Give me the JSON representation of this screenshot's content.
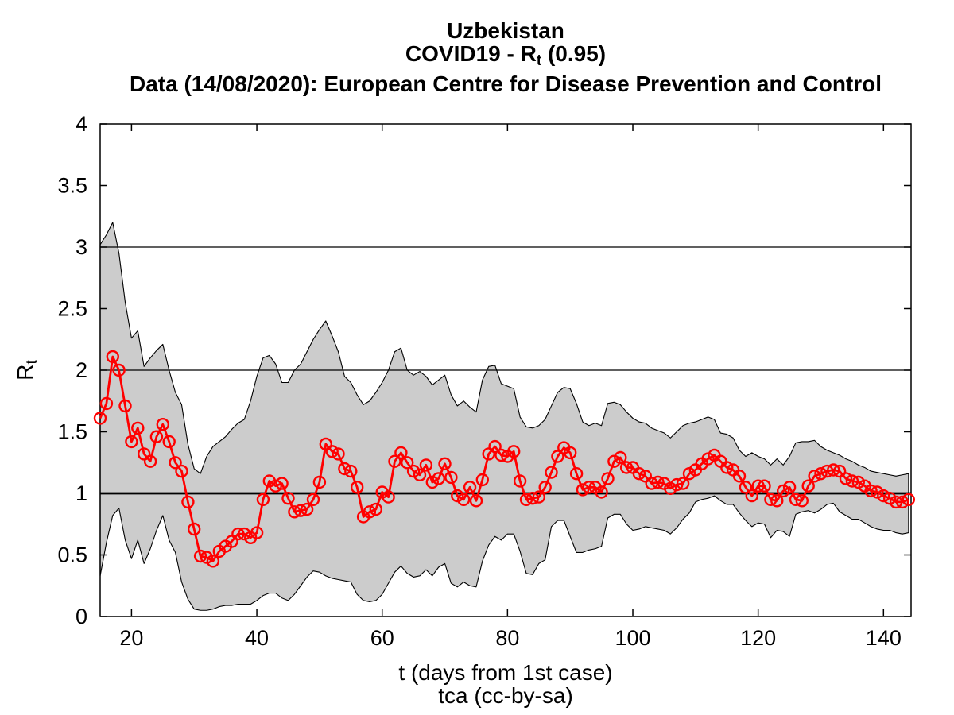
{
  "header": {
    "country": "Uzbekistan",
    "main_prefix": "COVID19 - R",
    "main_sub": "t",
    "main_suffix": " (0.95)",
    "data_source": "Data (14/08/2020): European Centre for Disease Prevention and Control"
  },
  "axes": {
    "x_label": "t (days from 1st case)",
    "x_sublabel": "tca (cc-by-sa)",
    "y_label_prefix": "R",
    "y_label_sub": "t"
  },
  "colors": {
    "series": "#ff0000",
    "band_fill": "#cccccc",
    "band_edge": "#000000",
    "axis": "#000000",
    "background": "#ffffff"
  },
  "chart_data": {
    "type": "line",
    "title": "Uzbekistan | COVID19 - Rt (0.95) | Data (14/08/2020): European Centre for Disease Prevention and Control",
    "xlabel": "t (days from 1st case)",
    "ylabel": "Rt",
    "xlim": [
      15,
      144.4
    ],
    "ylim": [
      0,
      4
    ],
    "x_ticks": [
      20,
      40,
      60,
      80,
      100,
      120,
      140
    ],
    "y_ticks": [
      0,
      0.5,
      1,
      1.5,
      2,
      2.5,
      3,
      3.5,
      4
    ],
    "reference_lines_y": [
      1,
      2,
      3
    ],
    "legend": "none",
    "grid": false,
    "x": [
      15,
      16,
      17,
      18,
      19,
      20,
      21,
      22,
      23,
      24,
      25,
      26,
      27,
      28,
      29,
      30,
      31,
      32,
      33,
      34,
      35,
      36,
      37,
      38,
      39,
      40,
      41,
      42,
      43,
      44,
      45,
      46,
      47,
      48,
      49,
      50,
      51,
      52,
      53,
      54,
      55,
      56,
      57,
      58,
      59,
      60,
      61,
      62,
      63,
      64,
      65,
      66,
      67,
      68,
      69,
      70,
      71,
      72,
      73,
      74,
      75,
      76,
      77,
      78,
      79,
      80,
      81,
      82,
      83,
      84,
      85,
      86,
      87,
      88,
      89,
      90,
      91,
      92,
      93,
      94,
      95,
      96,
      97,
      98,
      99,
      100,
      101,
      102,
      103,
      104,
      105,
      106,
      107,
      108,
      109,
      110,
      111,
      112,
      113,
      114,
      115,
      116,
      117,
      118,
      119,
      120,
      121,
      122,
      123,
      124,
      125,
      126,
      127,
      128,
      129,
      130,
      131,
      132,
      133,
      134,
      135,
      136,
      137,
      138,
      139,
      140,
      141,
      142,
      143,
      144
    ],
    "series": [
      {
        "name": "Rt estimate",
        "values": [
          1.61,
          1.73,
          2.11,
          2.0,
          1.71,
          1.42,
          1.53,
          1.32,
          1.26,
          1.46,
          1.56,
          1.42,
          1.25,
          1.18,
          0.93,
          0.71,
          0.49,
          0.48,
          0.45,
          0.53,
          0.57,
          0.61,
          0.67,
          0.67,
          0.64,
          0.68,
          0.95,
          1.1,
          1.06,
          1.08,
          0.96,
          0.85,
          0.86,
          0.87,
          0.95,
          1.09,
          1.4,
          1.34,
          1.32,
          1.2,
          1.18,
          1.05,
          0.81,
          0.85,
          0.87,
          1.01,
          0.97,
          1.26,
          1.33,
          1.25,
          1.18,
          1.15,
          1.23,
          1.09,
          1.12,
          1.24,
          1.13,
          0.98,
          0.95,
          1.05,
          0.94,
          1.11,
          1.32,
          1.38,
          1.31,
          1.3,
          1.34,
          1.1,
          0.95,
          0.96,
          0.97,
          1.05,
          1.17,
          1.3,
          1.37,
          1.33,
          1.16,
          1.03,
          1.05,
          1.05,
          1.01,
          1.12,
          1.26,
          1.29,
          1.21,
          1.21,
          1.16,
          1.14,
          1.08,
          1.09,
          1.08,
          1.04,
          1.07,
          1.08,
          1.16,
          1.19,
          1.24,
          1.28,
          1.31,
          1.26,
          1.21,
          1.19,
          1.14,
          1.05,
          0.98,
          1.06,
          1.06,
          0.95,
          0.94,
          1.02,
          1.05,
          0.95,
          0.94,
          1.06,
          1.14,
          1.16,
          1.18,
          1.19,
          1.18,
          1.12,
          1.1,
          1.09,
          1.06,
          1.02,
          1.01,
          0.98,
          0.96,
          0.93,
          0.93,
          0.95
        ]
      },
      {
        "name": "CI upper (0.95)",
        "values": [
          3.02,
          3.1,
          3.2,
          2.95,
          2.55,
          2.26,
          2.32,
          2.03,
          2.1,
          2.16,
          2.21,
          2.0,
          1.82,
          1.72,
          1.4,
          1.2,
          1.16,
          1.3,
          1.38,
          1.42,
          1.46,
          1.52,
          1.57,
          1.6,
          1.75,
          1.95,
          2.1,
          2.12,
          2.05,
          1.9,
          1.9,
          2.0,
          2.05,
          2.15,
          2.25,
          2.33,
          2.4,
          2.28,
          2.15,
          1.95,
          1.9,
          1.8,
          1.72,
          1.75,
          1.82,
          1.9,
          2.0,
          2.15,
          2.18,
          2.0,
          1.96,
          1.99,
          1.95,
          1.88,
          1.92,
          1.96,
          1.8,
          1.71,
          1.75,
          1.7,
          1.66,
          1.92,
          2.03,
          2.04,
          1.89,
          1.87,
          1.85,
          1.62,
          1.54,
          1.53,
          1.55,
          1.6,
          1.71,
          1.82,
          1.86,
          1.85,
          1.73,
          1.58,
          1.55,
          1.57,
          1.55,
          1.73,
          1.74,
          1.72,
          1.66,
          1.61,
          1.58,
          1.57,
          1.53,
          1.51,
          1.49,
          1.45,
          1.5,
          1.55,
          1.57,
          1.58,
          1.6,
          1.62,
          1.6,
          1.49,
          1.48,
          1.45,
          1.35,
          1.3,
          1.33,
          1.3,
          1.28,
          1.23,
          1.28,
          1.23,
          1.3,
          1.41,
          1.42,
          1.42,
          1.43,
          1.38,
          1.35,
          1.33,
          1.31,
          1.28,
          1.26,
          1.23,
          1.21,
          1.18,
          1.17,
          1.16,
          1.15,
          1.14,
          1.15,
          1.16
        ]
      },
      {
        "name": "CI lower (0.95)",
        "values": [
          0.33,
          0.6,
          0.82,
          0.88,
          0.62,
          0.47,
          0.62,
          0.43,
          0.55,
          0.7,
          0.82,
          0.62,
          0.52,
          0.28,
          0.14,
          0.06,
          0.05,
          0.05,
          0.06,
          0.08,
          0.09,
          0.09,
          0.1,
          0.1,
          0.1,
          0.13,
          0.17,
          0.19,
          0.19,
          0.15,
          0.13,
          0.18,
          0.25,
          0.32,
          0.37,
          0.36,
          0.33,
          0.31,
          0.3,
          0.29,
          0.28,
          0.18,
          0.13,
          0.12,
          0.13,
          0.18,
          0.27,
          0.36,
          0.41,
          0.35,
          0.32,
          0.33,
          0.38,
          0.33,
          0.4,
          0.43,
          0.27,
          0.24,
          0.28,
          0.25,
          0.24,
          0.45,
          0.58,
          0.65,
          0.62,
          0.67,
          0.67,
          0.53,
          0.35,
          0.34,
          0.43,
          0.46,
          0.73,
          0.78,
          0.78,
          0.65,
          0.52,
          0.52,
          0.54,
          0.55,
          0.57,
          0.8,
          0.83,
          0.83,
          0.75,
          0.7,
          0.71,
          0.73,
          0.72,
          0.71,
          0.7,
          0.67,
          0.72,
          0.79,
          0.84,
          0.93,
          0.95,
          0.96,
          0.98,
          0.94,
          0.91,
          0.91,
          0.84,
          0.78,
          0.73,
          0.76,
          0.75,
          0.64,
          0.7,
          0.69,
          0.65,
          0.83,
          0.85,
          0.86,
          0.84,
          0.87,
          0.91,
          0.92,
          0.85,
          0.82,
          0.79,
          0.79,
          0.76,
          0.73,
          0.71,
          0.7,
          0.7,
          0.68,
          0.67,
          0.68
        ]
      }
    ]
  }
}
